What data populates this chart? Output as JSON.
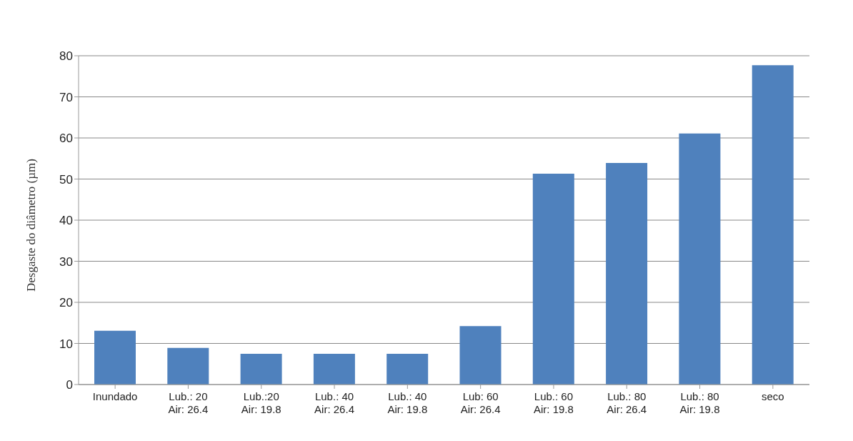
{
  "chart_data": {
    "type": "bar",
    "ylabel": "Desgaste do diâmetro (µm)",
    "categories": [
      "Inundado",
      "Lub.: 20\nAir: 26.4",
      "Lub.:20\nAir: 19.8",
      "Lub.: 40\nAir: 26.4",
      "Lub.: 40\nAir: 19.8",
      "Lub: 60\nAir: 26.4",
      "Lub.: 60\nAir: 19.8",
      "Lub.: 80\nAir: 26.4",
      "Lub.: 80\nAir: 19.8",
      "seco"
    ],
    "values": [
      13.1,
      8.9,
      7.5,
      7.5,
      7.5,
      14.2,
      51.3,
      53.9,
      61.1,
      77.7
    ],
    "color": "#4f81bd",
    "ylim": [
      0,
      80
    ],
    "yticks": [
      0,
      10,
      20,
      30,
      40,
      50,
      60,
      70,
      80
    ],
    "grid": "y"
  }
}
